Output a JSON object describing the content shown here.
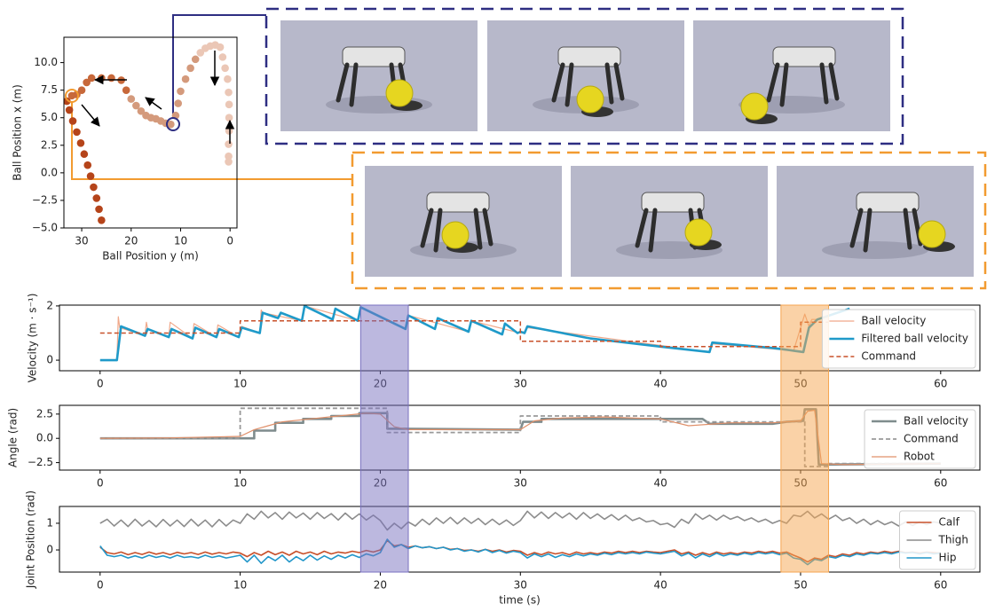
{
  "chart_data": [
    {
      "type": "scatter",
      "xlabel": "Ball Position y (m)",
      "ylabel": "Ball Position x (m)",
      "xlim": [
        33.6,
        -1.4
      ],
      "ylim": [
        -5.0,
        12.3
      ],
      "xticks": [
        30,
        20,
        10,
        0
      ],
      "yticks": [
        {
          "value": 10,
          "label": "10.0"
        },
        {
          "value": 7.5,
          "label": "7.5"
        },
        {
          "value": 5,
          "label": "5.0"
        },
        {
          "value": 2.5,
          "label": "2.5"
        },
        {
          "value": 0,
          "label": "0.0"
        },
        {
          "value": -2.5,
          "label": "−2.5"
        },
        {
          "value": -5,
          "label": "−5.0"
        }
      ],
      "series": [
        {
          "color": "#b5441a",
          "x": [
            26,
            26.5,
            27,
            27.6,
            28.2,
            28.8,
            29.5,
            30.2,
            31,
            31.8,
            32.5,
            33
          ],
          "values": [
            -4.3,
            -3.3,
            -2.3,
            -1.3,
            -0.3,
            0.7,
            1.7,
            2.7,
            3.7,
            4.7,
            5.7,
            6.5
          ]
        },
        {
          "color": "#c7683a",
          "x": [
            32,
            31,
            30,
            29,
            28,
            26,
            24,
            22,
            21
          ],
          "values": [
            7,
            7.1,
            7.5,
            8.2,
            8.6,
            8.6,
            8.6,
            8.4,
            7.5
          ]
        },
        {
          "color": "#d49a7c",
          "x": [
            20,
            19,
            18,
            17,
            16,
            15,
            14,
            13,
            12,
            11,
            10.5,
            10,
            9,
            8,
            7
          ],
          "values": [
            6.7,
            6.1,
            5.6,
            5.2,
            5,
            4.9,
            4.7,
            4.5,
            4.4,
            5.2,
            6.3,
            7.4,
            8.5,
            9.5,
            10.3
          ]
        },
        {
          "color": "#ebc7b6",
          "x": [
            6,
            5,
            4,
            3,
            2,
            1.5,
            1,
            0.5,
            0.3,
            0.2,
            0.2,
            0.2,
            0.3,
            0.3,
            0.3
          ],
          "values": [
            10.9,
            11.3,
            11.5,
            11.6,
            11.4,
            10.5,
            9.5,
            8.5,
            7.3,
            6.2,
            5,
            3.8,
            2.6,
            1.5,
            1.0
          ]
        }
      ]
    },
    {
      "type": "line",
      "ylabel": "Velocity (m · s⁻¹)",
      "xlim": [
        -2.9,
        62.8
      ],
      "ylim": [
        -0.39,
        2.03
      ],
      "xticks": [
        0,
        10,
        20,
        30,
        40,
        50,
        60
      ],
      "yticks": [
        0,
        2
      ],
      "legend": "upper right",
      "series": [
        {
          "name": "Ball velocity",
          "color": "#f0a88a",
          "linewidth": 1.2,
          "dash": false,
          "x": [
            0,
            1.2,
            1.3,
            1.4,
            3.2,
            3.3,
            3.4,
            4.9,
            5,
            6.6,
            6.7,
            8.3,
            8.4,
            9.9,
            10.1,
            11.4,
            11.5,
            11.6,
            14.4,
            14.6,
            18.4,
            18.6,
            21.8,
            22,
            26.3,
            26.5,
            30,
            30.3,
            30.5,
            43.5,
            43.7,
            49.5,
            50.3,
            50.6,
            50.8,
            51.2,
            53.5
          ],
          "values": [
            0,
            0,
            1.6,
            1.2,
            0.9,
            1.4,
            1.15,
            0.85,
            1.4,
            0.8,
            1.35,
            0.85,
            1.3,
            0.85,
            1.25,
            1.0,
            1.85,
            1.75,
            1.45,
            2.0,
            1.45,
            1.95,
            1.15,
            1.65,
            1.05,
            1.45,
            1.0,
            1.05,
            1.2,
            0.3,
            0.6,
            0.35,
            1.7,
            1.25,
            1.5,
            1.5,
            1.9
          ]
        },
        {
          "name": "Filtered ball velocity",
          "color": "#1f9ac9",
          "linewidth": 2.6,
          "dash": false,
          "x": [
            0,
            1.2,
            1.5,
            3.2,
            3.4,
            4.9,
            5.1,
            6.6,
            6.8,
            8.3,
            8.5,
            9.9,
            10.1,
            11.4,
            11.6,
            12.7,
            12.9,
            14.4,
            14.6,
            16.6,
            16.8,
            18.4,
            18.6,
            21.8,
            22,
            23.9,
            24.1,
            26.3,
            26.5,
            28.7,
            28.9,
            29.8,
            30,
            30.3,
            30.5,
            35,
            40,
            43.5,
            43.7,
            48,
            49.5,
            50.2,
            50.6,
            51.2,
            53.5
          ],
          "values": [
            0,
            0,
            1.25,
            0.9,
            1.15,
            0.85,
            1.15,
            0.8,
            1.2,
            0.85,
            1.15,
            0.85,
            1.2,
            1.0,
            1.75,
            1.55,
            1.75,
            1.45,
            2.0,
            1.5,
            1.9,
            1.45,
            1.95,
            1.15,
            1.65,
            1.15,
            1.55,
            1.05,
            1.45,
            0.95,
            1.35,
            1.0,
            1.05,
            1.0,
            1.25,
            0.8,
            0.5,
            0.3,
            0.65,
            0.45,
            0.35,
            0.3,
            1.2,
            1.5,
            1.9
          ]
        },
        {
          "name": "Command",
          "color": "#c8502a",
          "linewidth": 1.5,
          "dash": true,
          "x": [
            0,
            10,
            10,
            30,
            30,
            40,
            40,
            50,
            50,
            52
          ],
          "values": [
            1,
            1,
            1.45,
            1.45,
            0.7,
            0.7,
            0.5,
            0.5,
            1.4,
            1.4
          ]
        }
      ]
    },
    {
      "type": "line",
      "ylabel": "Angle (rad)",
      "xlim": [
        -2.9,
        62.8
      ],
      "ylim": [
        -3.27,
        3.4
      ],
      "xticks": [
        0,
        10,
        20,
        30,
        40,
        50,
        60
      ],
      "yticks": [
        {
          "value": 2.5,
          "label": "2.5"
        },
        {
          "value": 0,
          "label": "0.0"
        },
        {
          "value": -2.5,
          "label": "−2.5"
        }
      ],
      "legend": "upper right",
      "series": [
        {
          "name": "Ball velocity",
          "color": "#7f8c8d",
          "linewidth": 2.6,
          "dash": false,
          "x": [
            0,
            11,
            11,
            12.5,
            12.5,
            14.5,
            14.5,
            16.5,
            16.5,
            18.5,
            18.5,
            20.5,
            20.5,
            30,
            30.2,
            31.5,
            31.5,
            43,
            43.5,
            48,
            49,
            50.2,
            50.3,
            51.1,
            51.3,
            60
          ],
          "values": [
            0,
            0,
            0.8,
            0.8,
            1.6,
            1.6,
            2.0,
            2.0,
            2.3,
            2.3,
            2.6,
            2.6,
            1.0,
            0.9,
            1.7,
            1.7,
            2.0,
            2.0,
            1.5,
            1.5,
            1.7,
            1.8,
            3.0,
            3.0,
            -2.7,
            -2.6
          ]
        },
        {
          "name": "Command",
          "color": "#999999",
          "linewidth": 1.8,
          "dash": true,
          "x": [
            0,
            10,
            10,
            20.5,
            20.5,
            30,
            30,
            40,
            40,
            50.3,
            50.3,
            52,
            52,
            60
          ],
          "values": [
            0,
            0,
            3.1,
            3.1,
            0.6,
            0.6,
            2.3,
            2.3,
            1.7,
            1.7,
            -2.9,
            -2.9,
            -2.6,
            -2.6
          ]
        },
        {
          "name": "Robot",
          "color": "#e0906a",
          "linewidth": 1.2,
          "dash": false,
          "x": [
            0,
            5,
            10,
            11,
            12,
            13,
            15,
            17,
            19,
            20,
            21,
            22,
            25,
            30,
            31,
            33,
            36,
            40,
            42,
            45,
            48,
            50,
            50.5,
            51,
            51.5,
            53,
            60
          ],
          "values": [
            0,
            0.05,
            0.2,
            0.9,
            1.3,
            1.7,
            2.0,
            2.3,
            2.6,
            2.5,
            1.2,
            0.9,
            0.9,
            0.9,
            1.8,
            2.1,
            2.2,
            2.0,
            1.3,
            1.6,
            1.6,
            1.8,
            2.8,
            2.9,
            -2.6,
            -2.7,
            -2.6
          ]
        }
      ]
    },
    {
      "type": "line",
      "xlabel": "time (s)",
      "ylabel": "Joint Position (rad)",
      "xlim": [
        -2.9,
        62.8
      ],
      "ylim": [
        -0.83,
        1.63
      ],
      "xticks": [
        0,
        10,
        20,
        30,
        40,
        50,
        60
      ],
      "yticks": [
        0,
        1
      ],
      "legend": "upper right",
      "x": [
        0,
        0.5,
        1,
        1.5,
        2,
        2.5,
        3,
        3.5,
        4,
        4.5,
        5,
        5.5,
        6,
        6.5,
        7,
        7.5,
        8,
        8.5,
        9,
        9.5,
        10,
        10.5,
        11,
        11.5,
        12,
        12.5,
        13,
        13.5,
        14,
        14.5,
        15,
        15.5,
        16,
        16.5,
        17,
        17.5,
        18,
        18.5,
        19,
        19.5,
        20,
        20.5,
        21,
        21.5,
        22,
        22.5,
        23,
        23.5,
        24,
        24.5,
        25,
        25.5,
        26,
        26.5,
        27,
        27.5,
        28,
        28.5,
        29,
        29.5,
        30,
        30.5,
        31,
        31.5,
        32,
        32.5,
        33,
        33.5,
        34,
        34.5,
        35,
        35.5,
        36,
        36.5,
        37,
        37.5,
        38,
        38.5,
        39,
        39.5,
        40,
        40.5,
        41,
        41.5,
        42,
        42.5,
        43,
        43.5,
        44,
        44.5,
        45,
        45.5,
        46,
        46.5,
        47,
        47.5,
        48,
        48.5,
        49,
        49.5,
        50,
        50.5,
        51,
        51.5,
        52,
        52.5,
        53,
        53.5,
        54,
        54.5,
        55,
        55.5,
        56,
        56.5,
        57,
        57.5,
        58,
        58.5,
        59,
        59.5,
        60
      ],
      "series": [
        {
          "name": "Calf",
          "color": "#c8502a",
          "linewidth": 1.6,
          "dash": false,
          "values": [
            0.1,
            -0.1,
            -0.15,
            -0.08,
            -0.18,
            -0.1,
            -0.17,
            -0.08,
            -0.16,
            -0.1,
            -0.18,
            -0.09,
            -0.15,
            -0.1,
            -0.17,
            -0.08,
            -0.16,
            -0.1,
            -0.15,
            -0.08,
            -0.12,
            -0.25,
            -0.1,
            -0.2,
            -0.05,
            -0.18,
            -0.08,
            -0.2,
            -0.05,
            -0.15,
            -0.08,
            -0.18,
            -0.05,
            -0.15,
            -0.08,
            -0.12,
            -0.05,
            -0.1,
            -0.02,
            -0.08,
            0.0,
            0.35,
            0.15,
            0.2,
            0.1,
            0.15,
            0.08,
            0.12,
            0.05,
            0.1,
            0.02,
            0.05,
            -0.02,
            0.0,
            -0.05,
            0.02,
            -0.05,
            0.0,
            -0.08,
            -0.02,
            -0.05,
            -0.2,
            -0.1,
            -0.18,
            -0.08,
            -0.15,
            -0.1,
            -0.18,
            -0.08,
            -0.15,
            -0.1,
            -0.15,
            -0.08,
            -0.12,
            -0.05,
            -0.1,
            -0.05,
            -0.1,
            -0.05,
            -0.08,
            -0.1,
            -0.05,
            0.0,
            -0.15,
            -0.08,
            -0.2,
            -0.1,
            -0.18,
            -0.08,
            -0.15,
            -0.1,
            -0.15,
            -0.08,
            -0.12,
            -0.05,
            -0.1,
            -0.05,
            -0.12,
            -0.08,
            -0.2,
            -0.3,
            -0.45,
            -0.3,
            -0.35,
            -0.2,
            -0.25,
            -0.15,
            -0.2,
            -0.1,
            -0.15,
            -0.08,
            -0.12,
            -0.05,
            -0.1,
            -0.05,
            -0.1,
            -0.08,
            -0.12,
            -0.08,
            -0.1,
            -0.12
          ]
        },
        {
          "name": "Thigh",
          "color": "#8c8c8c",
          "linewidth": 1.6,
          "dash": false,
          "values": [
            1.0,
            1.15,
            0.9,
            1.12,
            0.88,
            1.15,
            0.9,
            1.1,
            0.87,
            1.14,
            0.9,
            1.12,
            0.88,
            1.15,
            0.9,
            1.12,
            0.87,
            1.14,
            0.9,
            1.12,
            1.0,
            1.35,
            1.15,
            1.45,
            1.2,
            1.4,
            1.15,
            1.42,
            1.2,
            1.38,
            1.15,
            1.4,
            1.18,
            1.36,
            1.12,
            1.38,
            1.15,
            1.35,
            1.12,
            1.3,
            1.1,
            0.75,
            1.0,
            0.8,
            1.05,
            0.9,
            1.15,
            0.95,
            1.2,
            1.0,
            1.22,
            0.98,
            1.2,
            1.0,
            1.18,
            0.95,
            1.15,
            0.95,
            1.12,
            0.92,
            1.1,
            1.45,
            1.2,
            1.42,
            1.18,
            1.4,
            1.2,
            1.38,
            1.15,
            1.4,
            1.18,
            1.35,
            1.15,
            1.32,
            1.12,
            1.3,
            1.1,
            1.2,
            1.05,
            1.1,
            0.95,
            1.0,
            0.85,
            1.15,
            1.0,
            1.35,
            1.15,
            1.3,
            1.12,
            1.3,
            1.15,
            1.25,
            1.1,
            1.2,
            1.05,
            1.15,
            1.0,
            1.1,
            1.0,
            1.3,
            1.25,
            1.45,
            1.2,
            1.35,
            1.15,
            1.3,
            1.1,
            1.2,
            1.0,
            1.15,
            0.95,
            1.1,
            0.95,
            1.05,
            0.9,
            1.05,
            0.92,
            1.05,
            0.95,
            1.05,
            1.0
          ]
        },
        {
          "name": "Hip",
          "color": "#2196c9",
          "linewidth": 1.6,
          "dash": false,
          "values": [
            0.15,
            -0.2,
            -0.25,
            -0.2,
            -0.3,
            -0.22,
            -0.3,
            -0.2,
            -0.28,
            -0.22,
            -0.3,
            -0.2,
            -0.28,
            -0.25,
            -0.3,
            -0.2,
            -0.28,
            -0.22,
            -0.3,
            -0.25,
            -0.2,
            -0.45,
            -0.2,
            -0.5,
            -0.25,
            -0.4,
            -0.2,
            -0.45,
            -0.25,
            -0.4,
            -0.2,
            -0.38,
            -0.22,
            -0.35,
            -0.2,
            -0.3,
            -0.18,
            -0.28,
            -0.15,
            -0.22,
            -0.1,
            0.4,
            0.1,
            0.2,
            0.05,
            0.15,
            0.08,
            0.12,
            0.05,
            0.1,
            0.0,
            0.05,
            -0.05,
            0.0,
            -0.08,
            0.02,
            -0.1,
            -0.02,
            -0.12,
            -0.05,
            -0.1,
            -0.3,
            -0.15,
            -0.25,
            -0.15,
            -0.28,
            -0.18,
            -0.25,
            -0.15,
            -0.22,
            -0.15,
            -0.2,
            -0.12,
            -0.18,
            -0.1,
            -0.15,
            -0.1,
            -0.15,
            -0.08,
            -0.12,
            -0.15,
            -0.1,
            -0.05,
            -0.22,
            -0.12,
            -0.3,
            -0.15,
            -0.25,
            -0.12,
            -0.22,
            -0.15,
            -0.2,
            -0.12,
            -0.18,
            -0.1,
            -0.15,
            -0.1,
            -0.18,
            -0.12,
            -0.3,
            -0.35,
            -0.55,
            -0.35,
            -0.4,
            -0.25,
            -0.3,
            -0.2,
            -0.25,
            -0.15,
            -0.2,
            -0.12,
            -0.15,
            -0.1,
            -0.15,
            -0.08,
            -0.12,
            -0.1,
            -0.15,
            -0.1,
            -0.15,
            -0.12
          ]
        }
      ]
    }
  ],
  "highlights": [
    {
      "xlim": [
        18.6,
        22
      ],
      "color": "#7a72c0"
    },
    {
      "xlim": [
        48.6,
        52
      ],
      "color": "#f5a550"
    }
  ]
}
